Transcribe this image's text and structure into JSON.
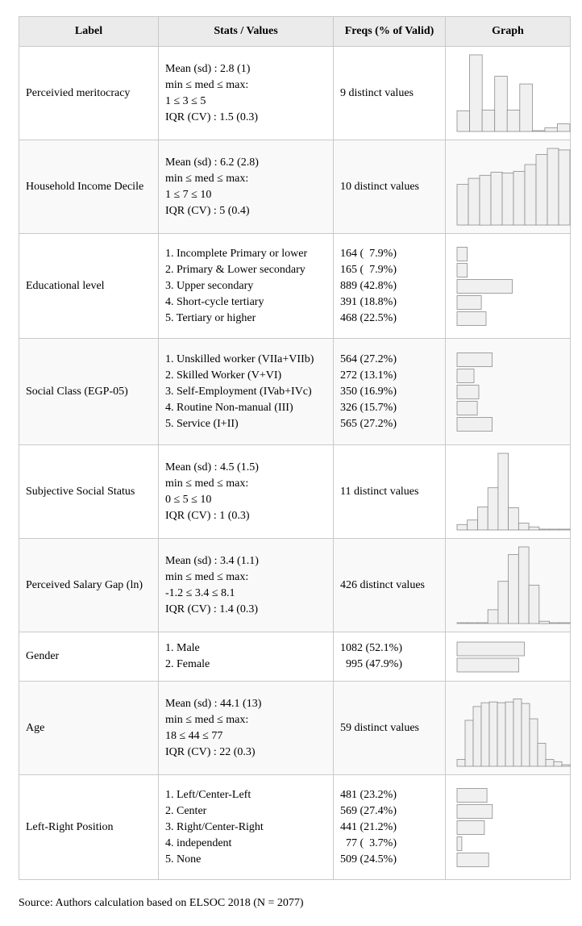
{
  "headers": [
    "Label",
    "Stats / Values",
    "Freqs (% of Valid)",
    "Graph"
  ],
  "rows": [
    {
      "label": "Perceivied meritocracy",
      "stats": [
        "Mean (sd) : 2.8 (1)",
        "min ≤ med ≤ max:",
        "1 ≤ 3 ≤ 5",
        "IQR (CV) : 1.5 (0.3)"
      ],
      "freqs": [
        "9 distinct values"
      ],
      "graph": {
        "type": "histogram",
        "values": [
          0.27,
          1.0,
          0.28,
          0.72,
          0.28,
          0.62,
          0.01,
          0.05,
          0.1
        ]
      }
    },
    {
      "label": "Household Income Decile",
      "stats": [
        "Mean (sd) : 6.2 (2.8)",
        "min ≤ med ≤ max:",
        "1 ≤ 7 ≤ 10",
        "IQR (CV) : 5 (0.4)"
      ],
      "freqs": [
        "10 distinct values"
      ],
      "graph": {
        "type": "histogram",
        "values": [
          0.53,
          0.61,
          0.65,
          0.69,
          0.68,
          0.7,
          0.79,
          0.92,
          1.0,
          0.98
        ]
      }
    },
    {
      "label": "Educational level",
      "stats": [
        "1. Incomplete Primary or lower",
        "2. Primary & Lower secondary",
        "3. Upper secondary",
        "4. Short-cycle tertiary",
        "5. Tertiary or higher"
      ],
      "freqs": [
        "164 (  7.9%)",
        "165 (  7.9%)",
        "889 (42.8%)",
        "391 (18.8%)",
        "468 (22.5%)"
      ],
      "graph": {
        "type": "bars",
        "values": [
          7.9,
          7.9,
          42.8,
          18.8,
          22.5
        ]
      }
    },
    {
      "label": "Social Class (EGP-05)",
      "stats": [
        "1. Unskilled worker (VIIa+VIIb)",
        "2. Skilled Worker (V+VI)",
        "3. Self-Employment (IVab+IVc)",
        "4. Routine Non-manual (III)",
        "5. Service (I+II)"
      ],
      "freqs": [
        "564 (27.2%)",
        "272 (13.1%)",
        "350 (16.9%)",
        "326 (15.7%)",
        "565 (27.2%)"
      ],
      "graph": {
        "type": "bars",
        "values": [
          27.2,
          13.1,
          16.9,
          15.7,
          27.2
        ]
      }
    },
    {
      "label": "Subjective Social Status",
      "stats": [
        "Mean (sd) : 4.5 (1.5)",
        "min ≤ med ≤ max:",
        "0 ≤ 5 ≤ 10",
        "IQR (CV) : 1 (0.3)"
      ],
      "freqs": [
        "11 distinct values"
      ],
      "graph": {
        "type": "histogram",
        "values": [
          0.07,
          0.13,
          0.3,
          0.55,
          1.0,
          0.29,
          0.09,
          0.04,
          0.01,
          0.01,
          0.005
        ]
      }
    },
    {
      "label": "Perceived Salary Gap (ln)",
      "stats": [
        "Mean (sd) : 3.4 (1.1)",
        "min ≤ med ≤ max:",
        "-1.2 ≤ 3.4 ≤ 8.1",
        "IQR (CV) : 1.4 (0.3)"
      ],
      "freqs": [
        "426 distinct values"
      ],
      "graph": {
        "type": "histogram",
        "values": [
          0.005,
          0.005,
          0.01,
          0.18,
          0.55,
          0.9,
          1.0,
          0.5,
          0.03,
          0.01,
          0.005
        ]
      }
    },
    {
      "label": "Gender",
      "stats": [
        "1. Male",
        "2. Female"
      ],
      "freqs": [
        "1082 (52.1%)",
        "  995 (47.9%)"
      ],
      "graph": {
        "type": "bars",
        "values": [
          52.1,
          47.9
        ]
      }
    },
    {
      "label": "Age",
      "stats": [
        "Mean (sd) : 44.1 (13)",
        "min ≤ med ≤ max:",
        "18 ≤ 44 ≤ 77",
        "IQR (CV) : 22 (0.3)"
      ],
      "freqs": [
        "59 distinct values"
      ],
      "graph": {
        "type": "histogram",
        "values": [
          0.09,
          0.6,
          0.78,
          0.83,
          0.84,
          0.83,
          0.84,
          0.88,
          0.82,
          0.62,
          0.3,
          0.09,
          0.06,
          0.02
        ]
      }
    },
    {
      "label": "Left-Right Position",
      "stats": [
        "1. Left/Center-Left",
        "2. Center",
        "3. Right/Center-Right",
        "4. independent",
        "5. None"
      ],
      "freqs": [
        "481 (23.2%)",
        "569 (27.4%)",
        "441 (21.2%)",
        "  77 (  3.7%)",
        "509 (24.5%)"
      ],
      "graph": {
        "type": "bars",
        "values": [
          23.2,
          27.4,
          21.2,
          3.7,
          24.5
        ]
      }
    }
  ],
  "source": "Source: Authors calculation based on ELSOC 2018 (N = 2077)",
  "colors": {
    "header_bg": "#ebebeb",
    "bar_fill": "#f0f0f0",
    "bar_stroke": "#8c8c8c",
    "grid": "#c9c9c9"
  }
}
